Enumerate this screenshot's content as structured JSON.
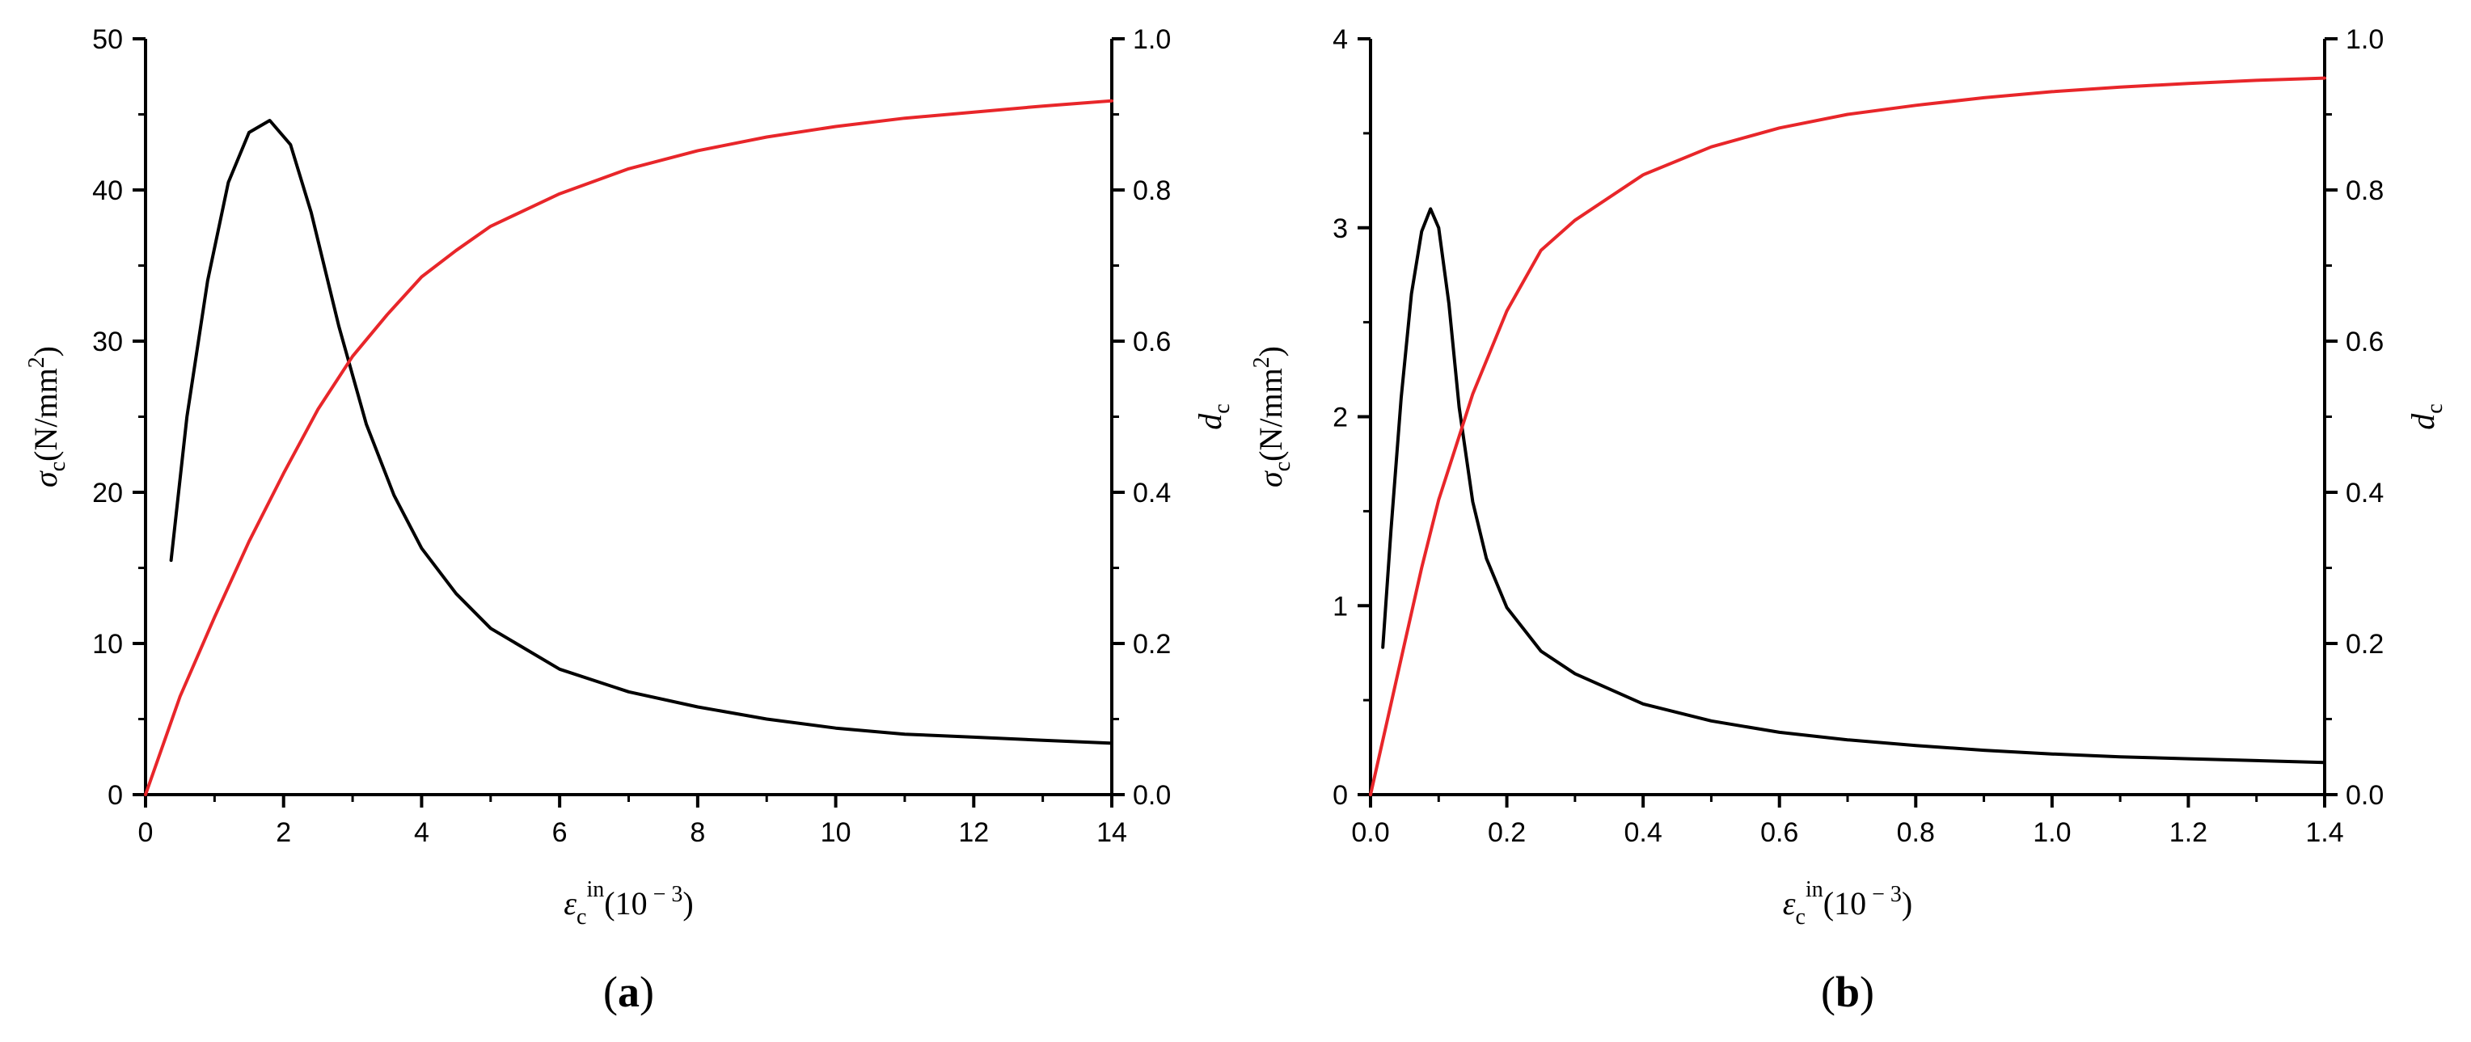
{
  "chart_data": [
    {
      "type": "line",
      "panel_label": "(a)",
      "panel_label_parts": [
        "(",
        "a",
        ")"
      ],
      "x_label": {
        "symbol": "ε",
        "sub": "c",
        "sup": "in",
        "unit": "(10",
        "unit_sup": " − 3",
        "unit_close": ")"
      },
      "y_left_label": {
        "symbol": "σ",
        "sub": "c",
        "unit": "(N/mm",
        "unit_sup": "2",
        "unit_close": ")"
      },
      "y_right_label": {
        "symbol": "d",
        "sub": "c"
      },
      "xlim": [
        0,
        14
      ],
      "ylim_left": [
        0,
        50
      ],
      "ylim_right": [
        0,
        1.0
      ],
      "x_ticks": [
        "0",
        "2",
        "4",
        "6",
        "8",
        "10",
        "12",
        "14"
      ],
      "y_left_ticks": [
        "0",
        "10",
        "20",
        "30",
        "40",
        "50"
      ],
      "y_right_ticks": [
        "0.0",
        "0.2",
        "0.4",
        "0.6",
        "0.8",
        "1.0"
      ],
      "grid": false,
      "series": [
        {
          "axis": "left",
          "color": "#000000",
          "x": [
            0.37,
            0.6,
            0.9,
            1.2,
            1.5,
            1.8,
            2.1,
            2.4,
            2.8,
            3.2,
            3.6,
            4.0,
            4.5,
            5.0,
            6.0,
            7.0,
            8.0,
            9.0,
            10.0,
            11.0,
            12.0,
            13.0,
            14.0
          ],
          "y": [
            15.5,
            25.0,
            34.0,
            40.5,
            43.8,
            44.6,
            43.0,
            38.5,
            31.0,
            24.5,
            19.8,
            16.3,
            13.3,
            11.0,
            8.3,
            6.8,
            5.8,
            5.0,
            4.4,
            4.0,
            3.8,
            3.6,
            3.4
          ]
        },
        {
          "axis": "right",
          "color": "#e8262a",
          "x": [
            0.0,
            0.5,
            1.0,
            1.5,
            2.0,
            2.5,
            3.0,
            3.5,
            4.0,
            4.5,
            5.0,
            6.0,
            7.0,
            8.0,
            9.0,
            10.0,
            11.0,
            12.0,
            13.0,
            14.0
          ],
          "y": [
            0.0,
            0.13,
            0.235,
            0.335,
            0.425,
            0.51,
            0.58,
            0.635,
            0.685,
            0.72,
            0.752,
            0.795,
            0.828,
            0.852,
            0.87,
            0.884,
            0.895,
            0.903,
            0.911,
            0.918
          ]
        }
      ]
    },
    {
      "type": "line",
      "panel_label": "(b)",
      "panel_label_parts": [
        "(",
        "b",
        ")"
      ],
      "x_label": {
        "symbol": "ε",
        "sub": "c",
        "sup": "in",
        "unit": "(10",
        "unit_sup": " − 3",
        "unit_close": ")"
      },
      "y_left_label": {
        "symbol": "σ",
        "sub": "c",
        "unit": "(N/mm",
        "unit_sup": "2",
        "unit_close": ")"
      },
      "y_right_label": {
        "symbol": "d",
        "sub": "c"
      },
      "xlim": [
        0,
        1.4
      ],
      "ylim_left": [
        0,
        4
      ],
      "ylim_right": [
        0,
        1.0
      ],
      "x_ticks": [
        "0.0",
        "0.2",
        "0.4",
        "0.6",
        "0.8",
        "1.0",
        "1.2",
        "1.4"
      ],
      "y_left_ticks": [
        "0",
        "1",
        "2",
        "3",
        "4"
      ],
      "y_right_ticks": [
        "0.0",
        "0.2",
        "0.4",
        "0.6",
        "0.8",
        "1.0"
      ],
      "grid": false,
      "series": [
        {
          "axis": "left",
          "color": "#000000",
          "x": [
            0.018,
            0.03,
            0.045,
            0.06,
            0.075,
            0.088,
            0.1,
            0.115,
            0.13,
            0.15,
            0.17,
            0.2,
            0.25,
            0.3,
            0.4,
            0.5,
            0.6,
            0.7,
            0.8,
            0.9,
            1.0,
            1.1,
            1.2,
            1.3,
            1.4
          ],
          "y": [
            0.78,
            1.4,
            2.1,
            2.65,
            2.98,
            3.1,
            3.0,
            2.6,
            2.05,
            1.55,
            1.25,
            0.99,
            0.76,
            0.64,
            0.48,
            0.39,
            0.33,
            0.29,
            0.26,
            0.235,
            0.215,
            0.2,
            0.19,
            0.18,
            0.17
          ]
        },
        {
          "axis": "right",
          "color": "#e8262a",
          "x": [
            0.0,
            0.025,
            0.05,
            0.075,
            0.1,
            0.125,
            0.15,
            0.2,
            0.25,
            0.3,
            0.4,
            0.5,
            0.6,
            0.7,
            0.8,
            0.9,
            1.0,
            1.1,
            1.2,
            1.3,
            1.4
          ],
          "y": [
            0.0,
            0.1,
            0.2,
            0.3,
            0.39,
            0.46,
            0.53,
            0.64,
            0.72,
            0.76,
            0.82,
            0.857,
            0.882,
            0.9,
            0.912,
            0.922,
            0.93,
            0.936,
            0.941,
            0.945,
            0.948
          ]
        }
      ]
    }
  ]
}
